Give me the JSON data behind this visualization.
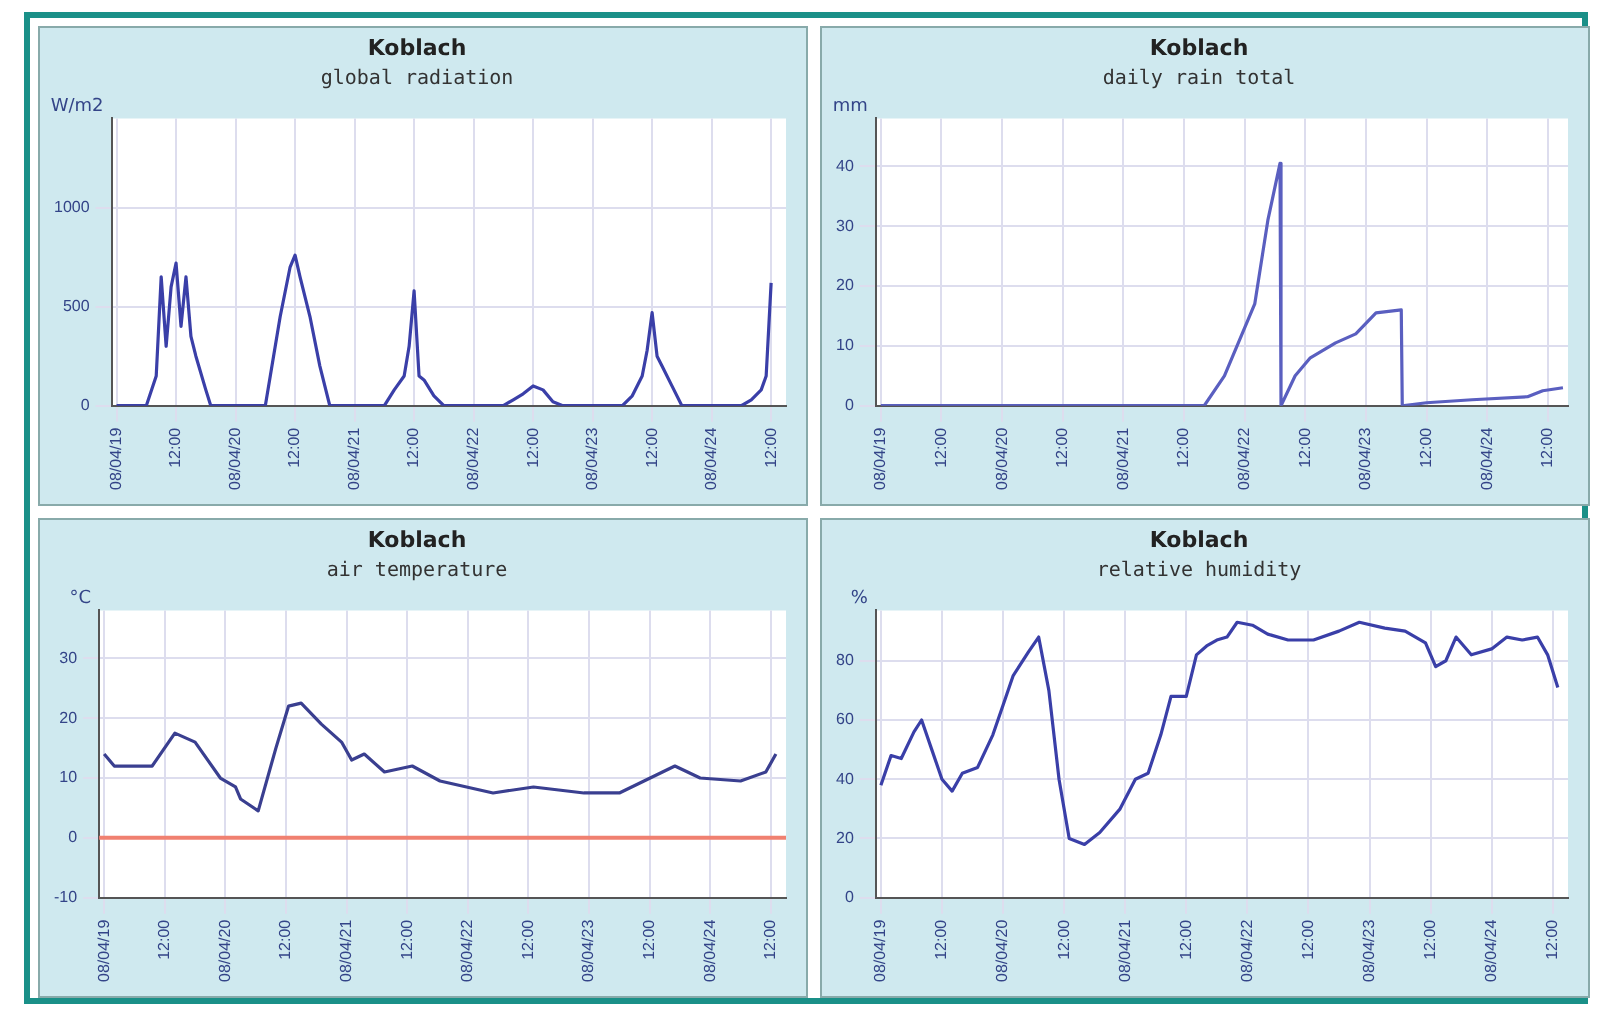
{
  "chart_data": [
    {
      "type": "line",
      "title": "Koblach",
      "subtitle": "global radiation",
      "ylabel": "W/m2",
      "grid": true,
      "legend": false,
      "marker": "none",
      "xlim": [
        "--04-18T23:00",
        "--04-24T15:00"
      ],
      "xticks": [
        {
          "value": "--04-19T00:00",
          "label": "08/04/19"
        },
        {
          "value": "--04-19T12:00",
          "label": "12:00"
        },
        {
          "value": "--04-20T00:00",
          "label": "08/04/20"
        },
        {
          "value": "--04-20T12:00",
          "label": "12:00"
        },
        {
          "value": "--04-21T00:00",
          "label": "08/04/21"
        },
        {
          "value": "--04-21T12:00",
          "label": "12:00"
        },
        {
          "value": "--04-22T00:00",
          "label": "08/04/22"
        },
        {
          "value": "--04-22T12:00",
          "label": "12:00"
        },
        {
          "value": "--04-23T00:00",
          "label": "08/04/23"
        },
        {
          "value": "--04-23T12:00",
          "label": "12:00"
        },
        {
          "value": "--04-24T00:00",
          "label": "08/04/24"
        },
        {
          "value": "--04-24T12:00",
          "label": "12:00"
        }
      ],
      "ylim": [
        0,
        1450
      ],
      "yticks": [
        0,
        500,
        1000
      ],
      "series": [
        {
          "color": "#3a3fa8",
          "x": [
            "--04-19T00:00",
            "--04-19T06:00",
            "--04-19T08:00",
            "--04-19T09:00",
            "--04-19T10:00",
            "--04-19T11:00",
            "--04-19T12:00",
            "--04-19T13:00",
            "--04-19T14:00",
            "--04-19T15:00",
            "--04-19T16:00",
            "--04-19T18:00",
            "--04-19T19:00",
            "--04-20T06:00",
            "--04-20T07:00",
            "--04-20T09:00",
            "--04-20T11:00",
            "--04-20T12:00",
            "--04-20T13:00",
            "--04-20T15:00",
            "--04-20T17:00",
            "--04-20T19:00",
            "--04-21T06:00",
            "--04-21T08:00",
            "--04-21T10:00",
            "--04-21T11:00",
            "--04-21T12:00",
            "--04-21T13:00",
            "--04-21T14:00",
            "--04-21T16:00",
            "--04-21T18:00",
            "--04-22T06:00",
            "--04-22T08:00",
            "--04-22T10:00",
            "--04-22T12:00",
            "--04-22T14:00",
            "--04-22T16:00",
            "--04-22T18:00",
            "--04-23T06:00",
            "--04-23T08:00",
            "--04-23T10:00",
            "--04-23T11:00",
            "--04-23T12:00",
            "--04-23T13:00",
            "--04-23T14:00",
            "--04-23T16:00",
            "--04-23T18:00",
            "--04-24T06:00",
            "--04-24T08:00",
            "--04-24T10:00",
            "--04-24T11:00",
            "--04-24T12:00"
          ],
          "values": [
            0,
            0,
            150,
            650,
            300,
            600,
            720,
            400,
            650,
            350,
            250,
            80,
            0,
            0,
            150,
            450,
            700,
            760,
            650,
            450,
            200,
            0,
            0,
            80,
            150,
            300,
            580,
            150,
            130,
            50,
            0,
            0,
            30,
            60,
            100,
            80,
            20,
            0,
            0,
            50,
            150,
            280,
            470,
            250,
            200,
            100,
            0,
            0,
            30,
            80,
            150,
            620
          ]
        }
      ]
    },
    {
      "type": "line",
      "title": "Koblach",
      "subtitle": "daily rain total",
      "ylabel": "mm",
      "grid": true,
      "legend": false,
      "marker": "none",
      "xlim": [
        "--04-18T23:00",
        "--04-24T16:00"
      ],
      "xticks": [
        {
          "value": "--04-19T00:00",
          "label": "08/04/19"
        },
        {
          "value": "--04-19T12:00",
          "label": "12:00"
        },
        {
          "value": "--04-20T00:00",
          "label": "08/04/20"
        },
        {
          "value": "--04-20T12:00",
          "label": "12:00"
        },
        {
          "value": "--04-21T00:00",
          "label": "08/04/21"
        },
        {
          "value": "--04-21T12:00",
          "label": "12:00"
        },
        {
          "value": "--04-22T00:00",
          "label": "08/04/22"
        },
        {
          "value": "--04-22T12:00",
          "label": "12:00"
        },
        {
          "value": "--04-23T00:00",
          "label": "08/04/23"
        },
        {
          "value": "--04-23T12:00",
          "label": "12:00"
        },
        {
          "value": "--04-24T00:00",
          "label": "08/04/24"
        },
        {
          "value": "--04-24T12:00",
          "label": "12:00"
        }
      ],
      "ylim": [
        0,
        48
      ],
      "yticks": [
        0,
        10,
        20,
        30,
        40
      ],
      "series": [
        {
          "color": "#5a5fc0",
          "x": [
            "--04-19T00:00",
            "--04-21T16:00",
            "--04-21T20:00",
            "--04-22T02:00",
            "--04-22T04:36",
            "--04-22T07:00",
            "--04-22T07:12",
            "--04-22T10:00",
            "--04-22T13:00",
            "--04-22T18:00",
            "--04-22T22:00",
            "--04-23T02:00",
            "--04-23T07:00",
            "--04-23T07:12",
            "--04-23T12:00",
            "--04-23T21:00",
            "--04-24T08:00",
            "--04-24T11:00",
            "--04-24T15:00"
          ],
          "values": [
            0,
            0,
            5,
            17,
            31,
            40.5,
            0,
            5,
            8,
            10.5,
            12,
            15.5,
            16,
            0,
            0.5,
            1,
            1.5,
            2.5,
            3
          ]
        }
      ]
    },
    {
      "type": "line",
      "title": "Koblach",
      "subtitle": "air temperature",
      "ylabel": "°C",
      "grid": true,
      "legend": false,
      "marker": "none",
      "xlim": [
        "--04-18T23:00",
        "--04-24T15:00"
      ],
      "xticks": [
        {
          "value": "--04-19T00:00",
          "label": "08/04/19"
        },
        {
          "value": "--04-19T12:00",
          "label": "12:00"
        },
        {
          "value": "--04-20T00:00",
          "label": "08/04/20"
        },
        {
          "value": "--04-20T12:00",
          "label": "12:00"
        },
        {
          "value": "--04-21T00:00",
          "label": "08/04/21"
        },
        {
          "value": "--04-21T12:00",
          "label": "12:00"
        },
        {
          "value": "--04-22T00:00",
          "label": "08/04/22"
        },
        {
          "value": "--04-22T12:00",
          "label": "12:00"
        },
        {
          "value": "--04-23T00:00",
          "label": "08/04/23"
        },
        {
          "value": "--04-23T12:00",
          "label": "12:00"
        },
        {
          "value": "--04-24T00:00",
          "label": "08/04/24"
        },
        {
          "value": "--04-24T12:00",
          "label": "12:00"
        }
      ],
      "ylim": [
        -10,
        38
      ],
      "yticks": [
        -10,
        0,
        10,
        20,
        30
      ],
      "ref_lines": [
        {
          "axis": "y",
          "value": 0,
          "color": "#f08070"
        }
      ],
      "series": [
        {
          "color": "#3a3f90",
          "x": [
            "--04-19T00:00",
            "--04-19T02:00",
            "--04-19T09:30",
            "--04-19T14:00",
            "--04-19T18:00",
            "--04-19T23:00",
            "--04-20T02:00",
            "--04-20T03:00",
            "--04-20T06:30",
            "--04-20T10:00",
            "--04-20T12:30",
            "--04-20T15:00",
            "--04-20T19:00",
            "--04-20T23:00",
            "--04-21T01:00",
            "--04-21T03:30",
            "--04-21T07:30",
            "--04-21T13:00",
            "--04-21T18:30",
            "--04-22T05:00",
            "--04-22T13:00",
            "--04-22T23:00",
            "--04-23T06:00",
            "--04-23T17:00",
            "--04-23T22:00",
            "--04-24T06:00",
            "--04-24T11:00",
            "--04-24T13:00"
          ],
          "values": [
            14,
            12,
            12,
            17.5,
            16,
            10,
            8.5,
            6.5,
            4.5,
            15,
            22,
            22.5,
            19,
            16,
            13,
            14,
            11,
            12,
            9.5,
            7.5,
            8.5,
            7.5,
            7.5,
            12,
            10,
            9.5,
            11,
            14
          ]
        }
      ]
    },
    {
      "type": "line",
      "title": "Koblach",
      "subtitle": "relative humidity",
      "ylabel": "%",
      "grid": true,
      "legend": false,
      "marker": "none",
      "xlim": [
        "--04-18T23:00",
        "--04-24T15:00"
      ],
      "xticks": [
        {
          "value": "--04-19T00:00",
          "label": "08/04/19"
        },
        {
          "value": "--04-19T12:00",
          "label": "12:00"
        },
        {
          "value": "--04-20T00:00",
          "label": "08/04/20"
        },
        {
          "value": "--04-20T12:00",
          "label": "12:00"
        },
        {
          "value": "--04-21T00:00",
          "label": "08/04/21"
        },
        {
          "value": "--04-21T12:00",
          "label": "12:00"
        },
        {
          "value": "--04-22T00:00",
          "label": "08/04/22"
        },
        {
          "value": "--04-22T12:00",
          "label": "12:00"
        },
        {
          "value": "--04-23T00:00",
          "label": "08/04/23"
        },
        {
          "value": "--04-23T12:00",
          "label": "12:00"
        },
        {
          "value": "--04-24T00:00",
          "label": "08/04/24"
        },
        {
          "value": "--04-24T12:00",
          "label": "12:00"
        }
      ],
      "ylim": [
        0,
        97
      ],
      "yticks": [
        0,
        20,
        40,
        60,
        80
      ],
      "series": [
        {
          "color": "#3a3fa8",
          "x": [
            "--04-19T00:00",
            "--04-19T02:00",
            "--04-19T04:00",
            "--04-19T06:30",
            "--04-19T08:00",
            "--04-19T10:00",
            "--04-19T12:00",
            "--04-19T14:00",
            "--04-19T16:00",
            "--04-19T19:00",
            "--04-19T22:00",
            "--04-20T00:00",
            "--04-20T02:00",
            "--04-20T05:00",
            "--04-20T07:00",
            "--04-20T09:00",
            "--04-20T11:00",
            "--04-20T13:00",
            "--04-20T16:00",
            "--04-20T19:00",
            "--04-20T23:00",
            "--04-21T02:00",
            "--04-21T04:30",
            "--04-21T07:00",
            "--04-21T09:00",
            "--04-21T12:00",
            "--04-21T14:00",
            "--04-21T16:00",
            "--04-21T18:00",
            "--04-21T20:00",
            "--04-21T22:00",
            "--04-22T01:00",
            "--04-22T04:00",
            "--04-22T08:00",
            "--04-22T13:00",
            "--04-22T18:00",
            "--04-22T22:00",
            "--04-23T03:00",
            "--04-23T07:00",
            "--04-23T11:00",
            "--04-23T13:00",
            "--04-23T15:00",
            "--04-23T17:00",
            "--04-23T20:00",
            "--04-24T00:00",
            "--04-24T03:00",
            "--04-24T06:00",
            "--04-24T09:00",
            "--04-24T11:00",
            "--04-24T13:00"
          ],
          "values": [
            38,
            48,
            47,
            56,
            60,
            50,
            40,
            36,
            42,
            44,
            55,
            65,
            75,
            83,
            88,
            70,
            40,
            20,
            18,
            22,
            30,
            40,
            42,
            55,
            68,
            68,
            82,
            85,
            87,
            88,
            93,
            92,
            89,
            87,
            87,
            90,
            93,
            91,
            90,
            86,
            78,
            80,
            88,
            82,
            84,
            88,
            87,
            88,
            82,
            71
          ]
        }
      ]
    }
  ]
}
